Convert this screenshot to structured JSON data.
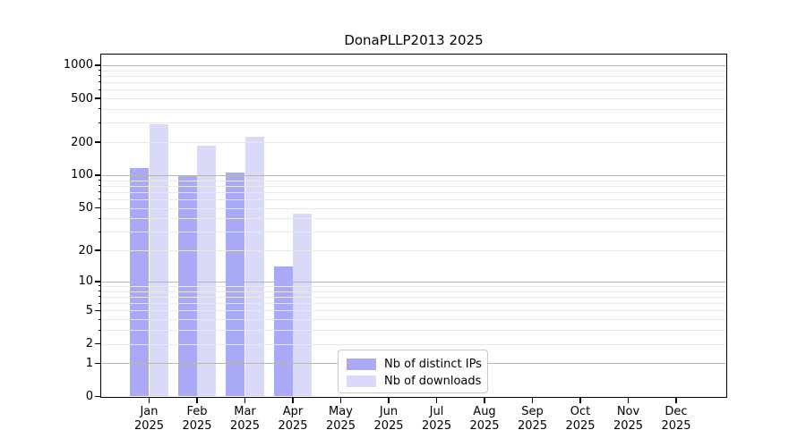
{
  "chart_data": {
    "type": "bar",
    "title": "DonaPLLP2013 2025",
    "x_months": [
      "Jan",
      "Feb",
      "Mar",
      "Apr",
      "May",
      "Jun",
      "Jul",
      "Aug",
      "Sep",
      "Oct",
      "Nov",
      "Dec"
    ],
    "x_year": "2025",
    "series": [
      {
        "name": "Nb of distinct IPs",
        "color": "#a9a9f7",
        "values": [
          115,
          100,
          105,
          14,
          0,
          0,
          0,
          0,
          0,
          0,
          0,
          0
        ]
      },
      {
        "name": "Nb of downloads",
        "color": "#d9d9f8",
        "values": [
          290,
          185,
          225,
          44,
          0,
          0,
          0,
          0,
          0,
          0,
          0,
          0
        ]
      }
    ],
    "yscale": "log1p",
    "ylim": [
      0,
      1260
    ],
    "yticks_labeled": [
      1000,
      500,
      200,
      100,
      50,
      20,
      10,
      5,
      2,
      1,
      0
    ],
    "yticks_major": [
      1,
      10,
      100,
      1000
    ],
    "yticks_minor": [
      2,
      3,
      4,
      5,
      6,
      7,
      8,
      9,
      20,
      30,
      40,
      50,
      60,
      70,
      80,
      90,
      200,
      300,
      400,
      500,
      600,
      700,
      800,
      900
    ],
    "grid": true,
    "legend_position": "lower center",
    "colors": {
      "major_grid": "#b6b6b6",
      "minor_grid": "#e8e8e8",
      "axis": "#000000",
      "background": "#ffffff"
    }
  }
}
